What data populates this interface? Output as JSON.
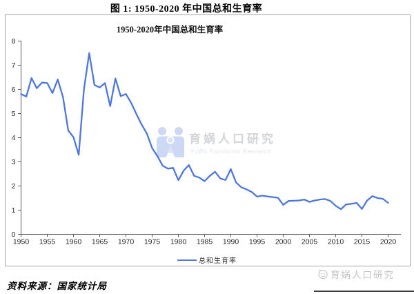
{
  "figure_title": "图 1: 1950-2020 年中国总和生育率",
  "source_note": "资料来源：国家统计局",
  "watermark": {
    "name": "育娲人口研究",
    "subtitle": "YuWa Population Research"
  },
  "brand": {
    "name": "育娲人口研究"
  },
  "colors": {
    "line": "#4d76e3",
    "axis": "#595959",
    "tick_label": "#262626",
    "box_border": "#a6a6a6",
    "watermark_blue": "#cdd9f4",
    "watermark_child_blue": "#d9e2f8",
    "watermark_text": "#d4d5da",
    "watermark_subtext": "#dbe4f7",
    "brand_gray": "#c2c2c2"
  },
  "chart_data": {
    "type": "line",
    "title": "1950-2020年中国总和生育率",
    "legend": "总和生育率",
    "legend_position": "bottom",
    "grid": false,
    "xlabel": "",
    "ylabel": "",
    "ylim": [
      0,
      8
    ],
    "xlim": [
      1950,
      2020
    ],
    "y_ticks": [
      0,
      1,
      2,
      3,
      4,
      5,
      6,
      7,
      8
    ],
    "x_ticks": [
      1950,
      1955,
      1960,
      1965,
      1970,
      1975,
      1980,
      1985,
      1990,
      1995,
      2000,
      2005,
      2010,
      2015,
      2020
    ],
    "years": [
      1950,
      1951,
      1952,
      1953,
      1954,
      1955,
      1956,
      1957,
      1958,
      1959,
      1960,
      1961,
      1962,
      1963,
      1964,
      1965,
      1966,
      1967,
      1968,
      1969,
      1970,
      1971,
      1972,
      1973,
      1974,
      1975,
      1976,
      1977,
      1978,
      1979,
      1980,
      1981,
      1982,
      1983,
      1984,
      1985,
      1986,
      1987,
      1988,
      1989,
      1990,
      1991,
      1992,
      1993,
      1994,
      1995,
      1996,
      1997,
      1998,
      1999,
      2000,
      2001,
      2002,
      2003,
      2004,
      2005,
      2006,
      2007,
      2008,
      2009,
      2010,
      2011,
      2012,
      2013,
      2014,
      2015,
      2016,
      2017,
      2018,
      2019,
      2020
    ],
    "values": [
      5.81,
      5.7,
      6.47,
      6.05,
      6.28,
      6.26,
      5.85,
      6.41,
      5.68,
      4.3,
      4.02,
      3.29,
      6.02,
      7.5,
      6.18,
      6.08,
      6.26,
      5.31,
      6.45,
      5.72,
      5.81,
      5.44,
      4.98,
      4.54,
      4.17,
      3.57,
      3.24,
      2.84,
      2.72,
      2.75,
      2.24,
      2.63,
      2.87,
      2.42,
      2.35,
      2.2,
      2.42,
      2.59,
      2.31,
      2.25,
      2.7,
      2.15,
      1.95,
      1.86,
      1.75,
      1.56,
      1.6,
      1.57,
      1.54,
      1.51,
      1.22,
      1.38,
      1.39,
      1.4,
      1.44,
      1.34,
      1.4,
      1.44,
      1.46,
      1.38,
      1.18,
      1.04,
      1.24,
      1.26,
      1.3,
      1.05,
      1.4,
      1.58,
      1.5,
      1.47,
      1.3
    ]
  }
}
